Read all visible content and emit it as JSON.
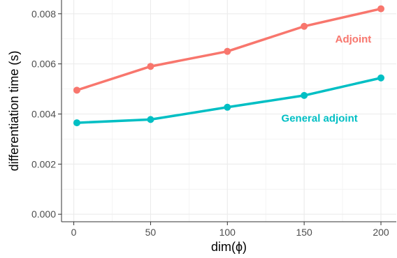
{
  "chart_data": {
    "type": "line",
    "xlabel": "dim(ϕ)",
    "ylabel": "differentiation time (s)",
    "x": [
      2,
      50,
      100,
      150,
      200
    ],
    "xticks": [
      0,
      50,
      100,
      150,
      200
    ],
    "xtick_labels": [
      "0",
      "50",
      "100",
      "150",
      "200"
    ],
    "yticks": [
      0.0,
      0.002,
      0.004,
      0.006,
      0.008
    ],
    "ytick_labels": [
      "0.000",
      "0.002",
      "0.004",
      "0.006",
      "0.008"
    ],
    "xlim": [
      -8,
      210
    ],
    "ylim": [
      -0.0003,
      0.00855
    ],
    "grid": true,
    "legend": "none",
    "series": [
      {
        "name": "Adjoint",
        "color": "#f8766d",
        "values": [
          0.00495,
          0.0059,
          0.0065,
          0.0075,
          0.0082
        ]
      },
      {
        "name": "General adjoint",
        "color": "#00bfc4",
        "values": [
          0.00365,
          0.00378,
          0.00427,
          0.00474,
          0.00544
        ]
      }
    ]
  }
}
